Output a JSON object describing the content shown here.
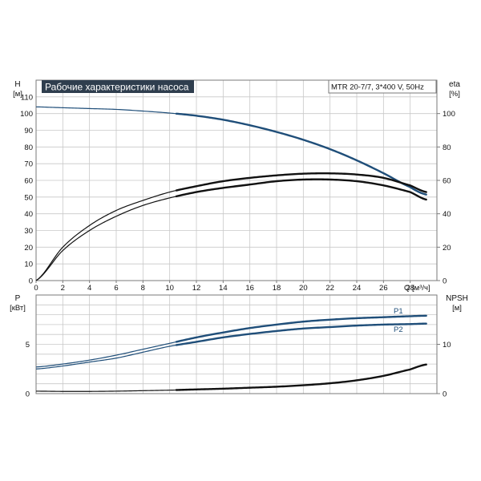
{
  "colors": {
    "background": "#ffffff",
    "grid": "#c8c8c8",
    "axis": "#7a7a7a",
    "blue": "#1f4e79",
    "black": "#111111",
    "title_bg": "#2f3e4e",
    "title_fg": "#ffffff",
    "label_blue": "#1f4e79"
  },
  "title": "Рабочие характеристики насоса",
  "model": "MTR 20-7/7, 3*400 V, 50Hz",
  "top_panel": {
    "left_axis_title": "H",
    "left_axis_unit": "[м]",
    "right_axis_title": "eta",
    "right_axis_unit": "[%]"
  },
  "bottom_panel": {
    "left_axis_title": "P",
    "left_axis_unit": "[кВт]",
    "right_axis_title": "NPSH",
    "right_axis_unit": "[м]",
    "p1_label": "P1",
    "p2_label": "P2"
  },
  "x_axis_label": "Q [м³/ч]",
  "chart_data": [
    {
      "type": "line",
      "title": "Рабочие характеристики насоса",
      "xlabel": "Q [м³/ч]",
      "ylabel": "H [м]",
      "y2label": "eta [%]",
      "xlim": [
        0,
        30
      ],
      "ylim": [
        0,
        120
      ],
      "y2lim": [
        0,
        120
      ],
      "x_ticks": [
        0,
        2,
        4,
        6,
        8,
        10,
        12,
        14,
        16,
        18,
        20,
        22,
        24,
        26,
        28
      ],
      "y_ticks": [
        0,
        10,
        20,
        30,
        40,
        50,
        60,
        70,
        80,
        90,
        100,
        110
      ],
      "y2_ticks": [
        0,
        20,
        40,
        60,
        80,
        100
      ],
      "grid": true,
      "series": [
        {
          "name": "H",
          "axis": "left",
          "color": "#1f4e79",
          "x": [
            0,
            2,
            4,
            6,
            8,
            10,
            12,
            14,
            16,
            18,
            20,
            22,
            24,
            26,
            28,
            29.2
          ],
          "y": [
            104,
            103.5,
            103,
            102.5,
            101.5,
            100.3,
            98.7,
            96.3,
            93,
            89,
            84.3,
            78.7,
            72,
            64.3,
            56,
            51.5
          ],
          "bold_from_x": 10.5
        },
        {
          "name": "eta",
          "axis": "right",
          "color": "#111111",
          "x": [
            0,
            2,
            4,
            6,
            8,
            10,
            12,
            14,
            16,
            18,
            20,
            22,
            24,
            26,
            28,
            29.2
          ],
          "y": [
            0,
            20,
            33,
            42,
            48,
            53,
            56.5,
            59.5,
            61.5,
            63,
            64,
            64.2,
            63.5,
            61.5,
            57,
            53
          ],
          "bold_from_x": 10.5
        },
        {
          "name": "eta",
          "axis": "right",
          "color": "#111111",
          "x": [
            0,
            2,
            4,
            6,
            8,
            10,
            12,
            14,
            16,
            18,
            20,
            22,
            24,
            26,
            28,
            29.2
          ],
          "y": [
            0,
            18,
            30,
            38.5,
            45,
            49.5,
            53,
            55.5,
            57.5,
            59.5,
            60.5,
            60.5,
            59.5,
            57,
            53,
            48.5
          ],
          "bold_from_x": 10.5
        }
      ]
    },
    {
      "type": "line",
      "xlabel": "Q [м³/ч]",
      "ylabel": "P [кВт]",
      "y2label": "NPSH [м]",
      "xlim": [
        0,
        30
      ],
      "ylim": [
        0,
        10
      ],
      "y2lim": [
        0,
        20
      ],
      "y_ticks": [
        0,
        5
      ],
      "y2_ticks": [
        0,
        10
      ],
      "grid": true,
      "series": [
        {
          "name": "P1",
          "axis": "left",
          "color": "#1f4e79",
          "x": [
            0,
            2,
            4,
            6,
            8,
            10,
            12,
            14,
            16,
            18,
            20,
            22,
            24,
            26,
            28,
            29.2
          ],
          "y": [
            2.7,
            3.0,
            3.4,
            3.9,
            4.5,
            5.1,
            5.7,
            6.2,
            6.65,
            7.0,
            7.3,
            7.5,
            7.65,
            7.75,
            7.85,
            7.9
          ],
          "bold_from_x": 10.5
        },
        {
          "name": "P2",
          "axis": "left",
          "color": "#1f4e79",
          "x": [
            0,
            2,
            4,
            6,
            8,
            10,
            12,
            14,
            16,
            18,
            20,
            22,
            24,
            26,
            28,
            29.2
          ],
          "y": [
            2.5,
            2.8,
            3.2,
            3.6,
            4.2,
            4.8,
            5.25,
            5.7,
            6.05,
            6.35,
            6.6,
            6.75,
            6.9,
            7.0,
            7.05,
            7.1
          ],
          "bold_from_x": 10.5
        },
        {
          "name": "NPSH",
          "axis": "right",
          "color": "#111111",
          "x": [
            0,
            2,
            4,
            6,
            8,
            10,
            12,
            14,
            16,
            18,
            20,
            22,
            24,
            26,
            28,
            29.2
          ],
          "y": [
            0.5,
            0.45,
            0.45,
            0.5,
            0.6,
            0.7,
            0.85,
            1.0,
            1.2,
            1.4,
            1.7,
            2.1,
            2.7,
            3.6,
            4.9,
            5.9
          ],
          "bold_from_x": 10.5
        }
      ]
    }
  ]
}
